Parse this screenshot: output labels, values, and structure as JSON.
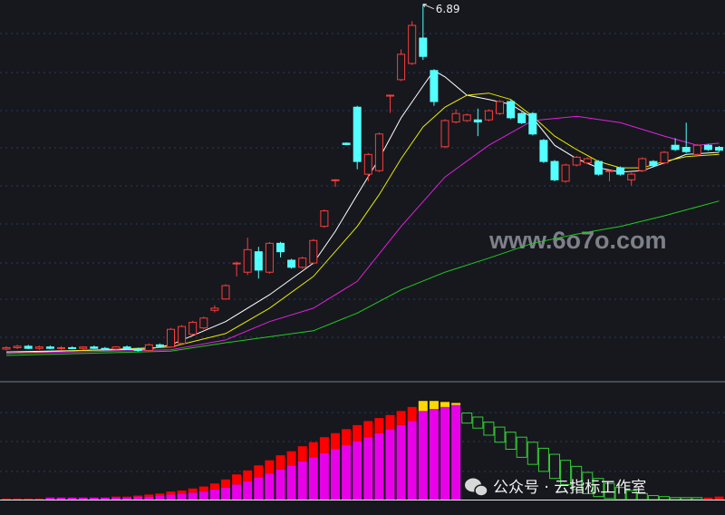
{
  "chart_data": {
    "type": "candlestick",
    "ylim": [
      1.55,
      6.95
    ],
    "up_color": "#ff3b3b",
    "down_color": "#54ffff",
    "candles": {
      "open": [
        2.0,
        2.02,
        2.04,
        2.01,
        2.03,
        2.01,
        2.02,
        2.01,
        2.03,
        2.01,
        2.0,
        2.03,
        2.0,
        1.98,
        2.06,
        2.03,
        2.08,
        2.21,
        2.3,
        2.55,
        2.71,
        3.22,
        3.09,
        3.38,
        3.09,
        3.5,
        3.26,
        3.16,
        3.22,
        3.74,
        4.4,
        4.92,
        5.43,
        4.48,
        4.53,
        5.6,
        5.82,
        6.05,
        6.41,
        5.95,
        4.87,
        5.22,
        5.24,
        5.25,
        5.25,
        5.34,
        5.51,
        5.34,
        5.34,
        4.96,
        4.66,
        4.38,
        4.61,
        4.64,
        4.66,
        4.53,
        4.57,
        4.4,
        4.53,
        4.66,
        4.64,
        4.89,
        4.86,
        4.76,
        4.89,
        4.86
      ],
      "high": [
        2.04,
        2.06,
        2.06,
        2.05,
        2.05,
        2.04,
        2.04,
        2.04,
        2.05,
        2.03,
        2.04,
        2.05,
        2.02,
        2.08,
        2.08,
        2.3,
        2.34,
        2.4,
        2.46,
        2.62,
        2.92,
        3.24,
        3.58,
        3.45,
        3.52,
        3.52,
        3.28,
        3.31,
        3.56,
        3.98,
        4.41,
        4.93,
        5.45,
        4.78,
        5.07,
        5.61,
        6.25,
        6.65,
        6.89,
        5.97,
        5.26,
        5.4,
        5.34,
        5.41,
        5.4,
        5.53,
        5.53,
        5.36,
        5.36,
        4.98,
        4.68,
        4.63,
        4.74,
        4.72,
        4.68,
        4.54,
        4.59,
        4.5,
        4.72,
        4.68,
        4.81,
        4.99,
        5.21,
        4.91,
        4.91,
        4.88
      ],
      "low": [
        1.98,
        2.0,
        2.0,
        1.99,
        2.0,
        1.99,
        2.0,
        1.99,
        2.0,
        1.98,
        1.98,
        1.99,
        1.96,
        1.97,
        2.02,
        2.02,
        2.06,
        2.2,
        2.28,
        2.52,
        2.7,
        3.03,
        3.05,
        3.0,
        3.07,
        3.3,
        3.14,
        3.14,
        3.2,
        3.72,
        4.3,
        4.89,
        4.55,
        4.38,
        4.51,
        5.35,
        5.8,
        6.03,
        6.1,
        5.45,
        4.85,
        5.2,
        5.22,
        5.02,
        5.23,
        5.32,
        5.26,
        5.19,
        5.03,
        4.64,
        4.38,
        4.36,
        4.59,
        4.62,
        4.46,
        4.38,
        4.46,
        4.32,
        4.51,
        4.58,
        4.62,
        4.81,
        4.78,
        4.74,
        4.81,
        4.8
      ],
      "close": [
        2.02,
        2.04,
        2.01,
        2.03,
        2.01,
        2.02,
        2.01,
        2.03,
        2.01,
        2.0,
        2.03,
        2.0,
        1.98,
        2.06,
        2.04,
        2.28,
        2.32,
        2.38,
        2.44,
        2.58,
        2.9,
        3.22,
        3.41,
        3.12,
        3.5,
        3.38,
        3.16,
        3.29,
        3.54,
        3.96,
        4.4,
        4.9,
        4.66,
        4.76,
        5.05,
        5.6,
        6.18,
        6.59,
        6.15,
        5.51,
        5.24,
        5.34,
        5.32,
        5.22,
        5.38,
        5.51,
        5.28,
        5.21,
        5.05,
        4.66,
        4.4,
        4.61,
        4.72,
        4.7,
        4.48,
        4.53,
        4.48,
        4.48,
        4.7,
        4.6,
        4.79,
        4.83,
        4.8,
        4.89,
        4.83,
        4.82
      ]
    },
    "lines": [
      {
        "color": "#ffffff",
        "x": [
          0,
          13,
          15,
          20,
          24,
          28,
          30,
          32,
          34,
          36,
          38,
          39,
          40,
          42,
          44,
          46,
          48,
          50,
          52,
          54,
          56,
          58,
          60,
          62,
          65
        ],
        "values": [
          1.96,
          2.0,
          2.06,
          2.39,
          2.77,
          3.22,
          3.67,
          4.19,
          4.7,
          5.28,
          5.73,
          5.95,
          5.86,
          5.6,
          5.54,
          5.47,
          5.28,
          4.89,
          4.7,
          4.57,
          4.51,
          4.53,
          4.64,
          4.76,
          4.79
        ]
      },
      {
        "color": "#e8e800",
        "x": [
          0,
          15,
          20,
          24,
          28,
          32,
          34,
          36,
          38,
          40,
          42,
          44,
          46,
          48,
          50,
          52,
          54,
          56,
          58,
          60,
          62,
          65
        ],
        "values": [
          1.94,
          2.03,
          2.22,
          2.58,
          3.03,
          3.74,
          4.19,
          4.7,
          5.15,
          5.43,
          5.6,
          5.63,
          5.54,
          5.3,
          5.02,
          4.83,
          4.66,
          4.57,
          4.57,
          4.66,
          4.73,
          4.76
        ]
      },
      {
        "color": "#e020e0",
        "x": [
          0,
          15,
          20,
          24,
          28,
          32,
          36,
          40,
          44,
          48,
          52,
          56,
          60,
          63,
          65
        ],
        "values": [
          1.94,
          1.99,
          2.13,
          2.39,
          2.58,
          2.96,
          3.74,
          4.44,
          4.89,
          5.24,
          5.3,
          5.21,
          5.02,
          4.89,
          4.92
        ]
      },
      {
        "color": "#22cc22",
        "x": [
          0,
          15,
          20,
          28,
          32,
          36,
          40,
          44,
          48,
          52,
          56,
          60,
          65
        ],
        "values": [
          1.91,
          1.97,
          2.09,
          2.26,
          2.51,
          2.84,
          3.09,
          3.29,
          3.5,
          3.63,
          3.74,
          3.89,
          4.1
        ]
      }
    ],
    "indicator": {
      "ylim": [
        0,
        100
      ],
      "series": [
        {
          "color": "#e800e8",
          "values": [
            null,
            null,
            null,
            null,
            2,
            2,
            2,
            2,
            2,
            2,
            2,
            2,
            3,
            3,
            4,
            5,
            6,
            7,
            8,
            10,
            12,
            15,
            18,
            22,
            26,
            30,
            34,
            38,
            42,
            46,
            50,
            54,
            58,
            62,
            66,
            70,
            74,
            78,
            88,
            90,
            92,
            94,
            null,
            null,
            null,
            null,
            null,
            null,
            null,
            null,
            null,
            null,
            null,
            null,
            null,
            null,
            null,
            null,
            null,
            null,
            null,
            null,
            null,
            null,
            null,
            null
          ]
        },
        {
          "color": "#ff0000",
          "values": [
            1,
            1,
            1,
            1,
            null,
            null,
            null,
            null,
            null,
            null,
            1,
            1,
            1,
            2,
            2,
            3,
            3,
            4,
            5,
            6,
            8,
            10,
            11,
            12,
            13,
            14,
            14,
            15,
            15,
            16,
            16,
            16,
            16,
            16,
            15,
            14,
            14,
            14,
            null,
            null,
            null,
            null,
            null,
            null,
            null,
            null,
            null,
            null,
            null,
            null,
            null,
            null,
            null,
            null,
            null,
            null,
            null,
            null,
            null,
            null,
            null,
            null,
            null,
            null,
            2,
            3
          ]
        },
        {
          "color": "#ffd700",
          "values": [
            null,
            null,
            null,
            null,
            null,
            null,
            null,
            null,
            null,
            null,
            null,
            null,
            null,
            null,
            null,
            null,
            null,
            null,
            null,
            null,
            null,
            null,
            null,
            null,
            null,
            null,
            null,
            null,
            null,
            null,
            null,
            null,
            null,
            null,
            null,
            null,
            null,
            null,
            10,
            8,
            5,
            2,
            null,
            null,
            null,
            null,
            null,
            null,
            null,
            null,
            null,
            null,
            null,
            null,
            null,
            null,
            null,
            null,
            null,
            null,
            null,
            null,
            null,
            null,
            null,
            null
          ]
        }
      ],
      "boxes": {
        "color": "#33cc33",
        "top": [
          null,
          null,
          null,
          null,
          null,
          null,
          null,
          null,
          null,
          null,
          null,
          null,
          null,
          null,
          null,
          null,
          null,
          null,
          null,
          null,
          null,
          null,
          null,
          null,
          null,
          null,
          null,
          null,
          null,
          null,
          null,
          null,
          null,
          null,
          null,
          null,
          null,
          null,
          null,
          null,
          null,
          null,
          86,
          82,
          77,
          72,
          67,
          62,
          57,
          51,
          45,
          39,
          33,
          27,
          21,
          16,
          12,
          9,
          6,
          4,
          3,
          2,
          2,
          2,
          null,
          null
        ],
        "bottom": [
          null,
          null,
          null,
          null,
          null,
          null,
          null,
          null,
          null,
          null,
          null,
          null,
          null,
          null,
          null,
          null,
          null,
          null,
          null,
          null,
          null,
          null,
          null,
          null,
          null,
          null,
          null,
          null,
          null,
          null,
          null,
          null,
          null,
          null,
          null,
          null,
          null,
          null,
          null,
          null,
          null,
          null,
          76,
          71,
          64,
          57,
          50,
          42,
          35,
          28,
          21,
          15,
          10,
          6,
          3,
          1,
          0,
          0,
          0,
          0,
          0,
          0,
          0,
          0,
          null,
          null
        ]
      }
    },
    "watermark": "www.6o7o.com",
    "caption": "公众号 · 云指标工作室"
  }
}
